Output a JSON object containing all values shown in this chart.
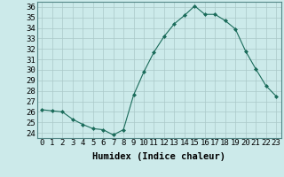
{
  "xlabel": "Humidex (Indice chaleur)",
  "x_values": [
    0,
    1,
    2,
    3,
    4,
    5,
    6,
    7,
    8,
    9,
    10,
    11,
    12,
    13,
    14,
    15,
    16,
    17,
    18,
    19,
    20,
    21,
    22,
    23
  ],
  "y_values": [
    26.2,
    26.1,
    26.0,
    25.3,
    24.8,
    24.4,
    24.3,
    23.8,
    24.3,
    27.6,
    29.8,
    31.7,
    33.2,
    34.4,
    35.2,
    36.1,
    35.3,
    35.3,
    34.7,
    33.9,
    31.8,
    30.1,
    28.5,
    27.5
  ],
  "ylim": [
    23.5,
    36.5
  ],
  "yticks": [
    24,
    25,
    26,
    27,
    28,
    29,
    30,
    31,
    32,
    33,
    34,
    35,
    36
  ],
  "line_color": "#1a6b5a",
  "marker": "D",
  "marker_size": 2.0,
  "bg_color": "#cceaea",
  "grid_color": "#aac8c8",
  "label_fontsize": 7.5,
  "tick_fontsize": 6.5
}
